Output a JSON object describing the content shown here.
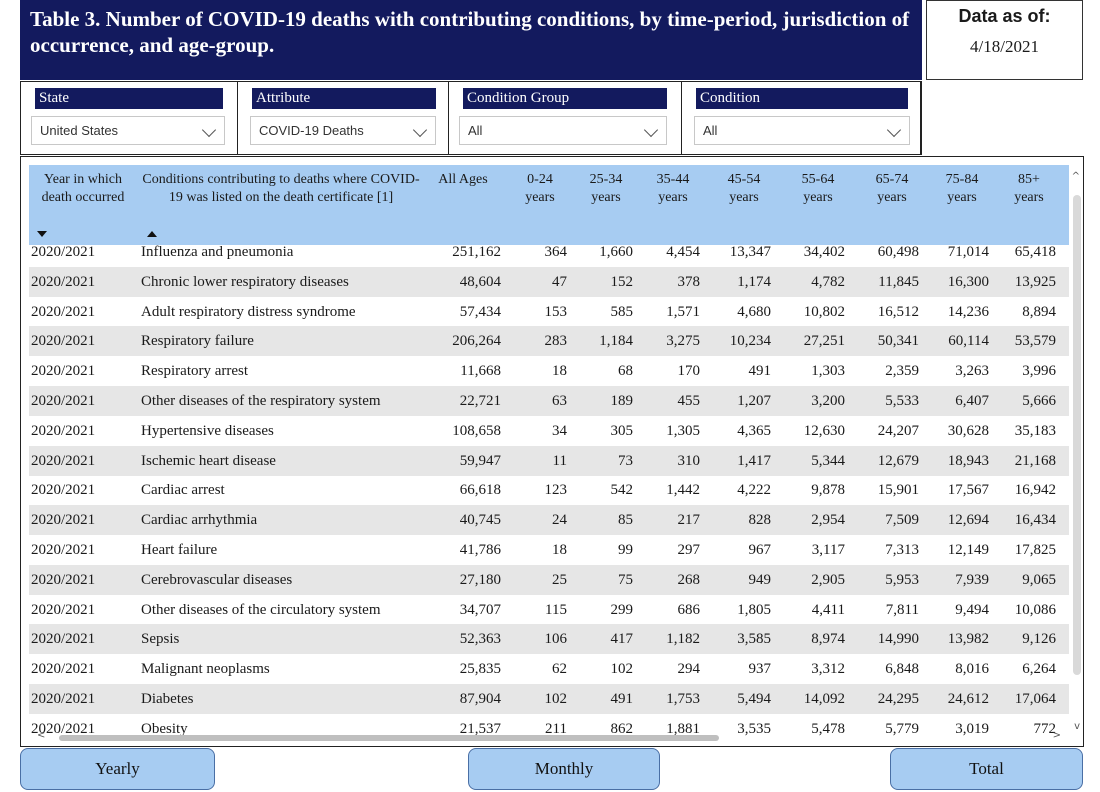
{
  "header": {
    "title": "Table 3. Number of COVID-19 deaths with contributing conditions, by time-period, jurisdiction of occurrence, and age-group.",
    "as_of_label": "Data as of:",
    "as_of_date": "4/18/2021"
  },
  "filters": [
    {
      "label": "State",
      "value": "United States"
    },
    {
      "label": "Attribute",
      "value": "COVID-19 Deaths"
    },
    {
      "label": "Condition Group",
      "value": "All"
    },
    {
      "label": "Condition",
      "value": "All"
    }
  ],
  "table": {
    "columns": [
      "Year in which death occurred",
      "Conditions contributing to deaths where COVID-19 was listed on the death certificate [1]",
      "All Ages",
      "0-24 years",
      "25-34 years",
      "35-44 years",
      "45-54 years",
      "55-64 years",
      "65-74 years",
      "75-84 years",
      "85+ years"
    ],
    "rows": [
      [
        "2020/2021",
        "Influenza and pneumonia",
        "251,162",
        "364",
        "1,660",
        "4,454",
        "13,347",
        "34,402",
        "60,498",
        "71,014",
        "65,418"
      ],
      [
        "2020/2021",
        "Chronic lower respiratory diseases",
        "48,604",
        "47",
        "152",
        "378",
        "1,174",
        "4,782",
        "11,845",
        "16,300",
        "13,925"
      ],
      [
        "2020/2021",
        "Adult respiratory distress syndrome",
        "57,434",
        "153",
        "585",
        "1,571",
        "4,680",
        "10,802",
        "16,512",
        "14,236",
        "8,894"
      ],
      [
        "2020/2021",
        "Respiratory failure",
        "206,264",
        "283",
        "1,184",
        "3,275",
        "10,234",
        "27,251",
        "50,341",
        "60,114",
        "53,579"
      ],
      [
        "2020/2021",
        "Respiratory arrest",
        "11,668",
        "18",
        "68",
        "170",
        "491",
        "1,303",
        "2,359",
        "3,263",
        "3,996"
      ],
      [
        "2020/2021",
        "Other diseases of the respiratory system",
        "22,721",
        "63",
        "189",
        "455",
        "1,207",
        "3,200",
        "5,533",
        "6,407",
        "5,666"
      ],
      [
        "2020/2021",
        "Hypertensive diseases",
        "108,658",
        "34",
        "305",
        "1,305",
        "4,365",
        "12,630",
        "24,207",
        "30,628",
        "35,183"
      ],
      [
        "2020/2021",
        "Ischemic heart disease",
        "59,947",
        "11",
        "73",
        "310",
        "1,417",
        "5,344",
        "12,679",
        "18,943",
        "21,168"
      ],
      [
        "2020/2021",
        "Cardiac arrest",
        "66,618",
        "123",
        "542",
        "1,442",
        "4,222",
        "9,878",
        "15,901",
        "17,567",
        "16,942"
      ],
      [
        "2020/2021",
        "Cardiac arrhythmia",
        "40,745",
        "24",
        "85",
        "217",
        "828",
        "2,954",
        "7,509",
        "12,694",
        "16,434"
      ],
      [
        "2020/2021",
        "Heart failure",
        "41,786",
        "18",
        "99",
        "297",
        "967",
        "3,117",
        "7,313",
        "12,149",
        "17,825"
      ],
      [
        "2020/2021",
        "Cerebrovascular diseases",
        "27,180",
        "25",
        "75",
        "268",
        "949",
        "2,905",
        "5,953",
        "7,939",
        "9,065"
      ],
      [
        "2020/2021",
        "Other diseases of the circulatory system",
        "34,707",
        "115",
        "299",
        "686",
        "1,805",
        "4,411",
        "7,811",
        "9,494",
        "10,086"
      ],
      [
        "2020/2021",
        "Sepsis",
        "52,363",
        "106",
        "417",
        "1,182",
        "3,585",
        "8,974",
        "14,990",
        "13,982",
        "9,126"
      ],
      [
        "2020/2021",
        "Malignant neoplasms",
        "25,835",
        "62",
        "102",
        "294",
        "937",
        "3,312",
        "6,848",
        "8,016",
        "6,264"
      ],
      [
        "2020/2021",
        "Diabetes",
        "87,904",
        "102",
        "491",
        "1,753",
        "5,494",
        "14,092",
        "24,295",
        "24,612",
        "17,064"
      ],
      [
        "2020/2021",
        "Obesity",
        "21,537",
        "211",
        "862",
        "1,881",
        "3,535",
        "5,478",
        "5,779",
        "3,019",
        "772"
      ]
    ]
  },
  "buttons": {
    "yearly": "Yearly",
    "monthly": "Monthly",
    "total": "Total"
  }
}
